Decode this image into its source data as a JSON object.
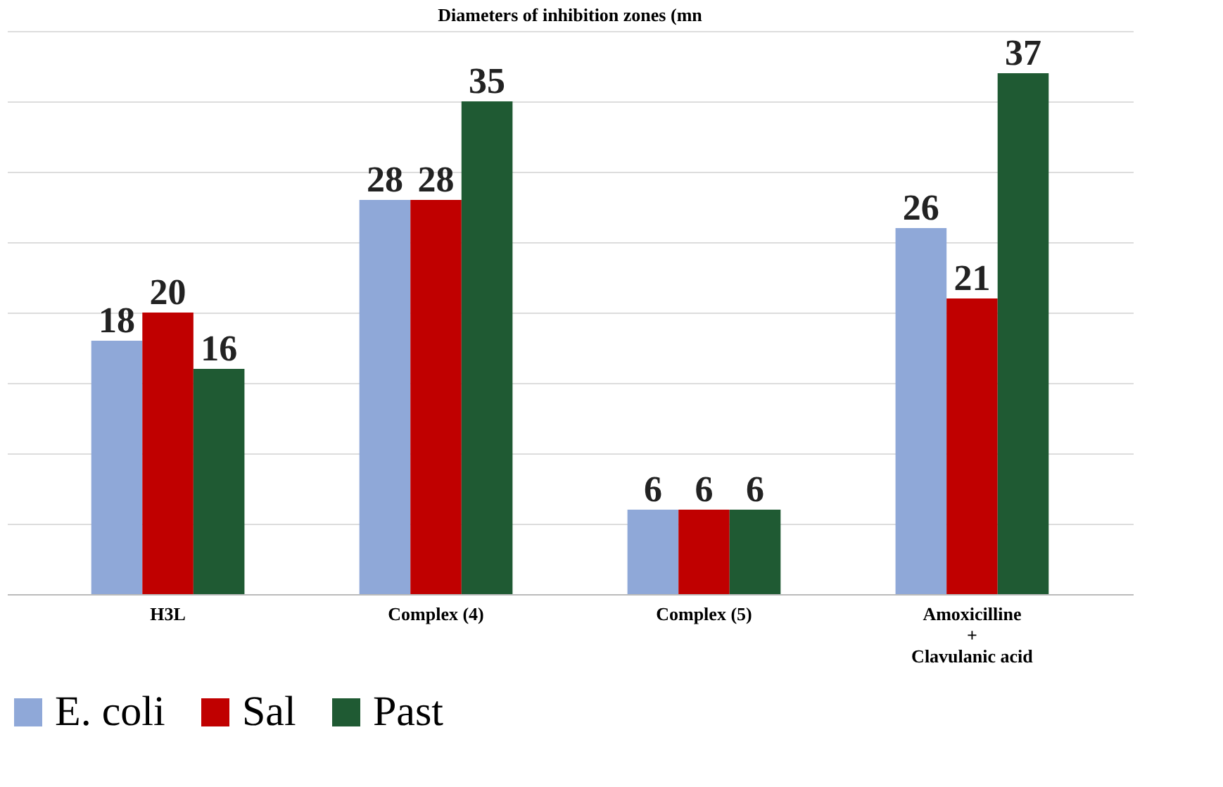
{
  "chart_data": {
    "type": "bar",
    "title": "Diameters of inhibition zones (mn",
    "categories": [
      "H3L",
      "Complex (4)",
      "Complex (5)",
      "Amoxicilline\n+\nClavulanic acid"
    ],
    "series": [
      {
        "name": "E. coli",
        "color": "#8fa8d8",
        "values": [
          18,
          28,
          6,
          26
        ]
      },
      {
        "name": "Sal",
        "color": "#c00000",
        "values": [
          20,
          28,
          6,
          21
        ]
      },
      {
        "name": "Past",
        "color": "#1f5a33",
        "values": [
          16,
          35,
          6,
          37
        ]
      }
    ],
    "ylim": [
      0,
      40
    ],
    "yticks": [
      {
        "value": 0,
        "label": null
      },
      {
        "value": 5,
        "label": null
      },
      {
        "value": 10,
        "label": null
      },
      {
        "value": 15,
        "label": null
      },
      {
        "value": 20,
        "label": null
      },
      {
        "value": 25,
        "label": null
      },
      {
        "value": 30,
        "label": null
      },
      {
        "value": 35,
        "label": null
      },
      {
        "value": 40,
        "label": null
      }
    ],
    "tick_labels": "x",
    "grid": "y",
    "data_labels": true,
    "legend": "bottom"
  }
}
